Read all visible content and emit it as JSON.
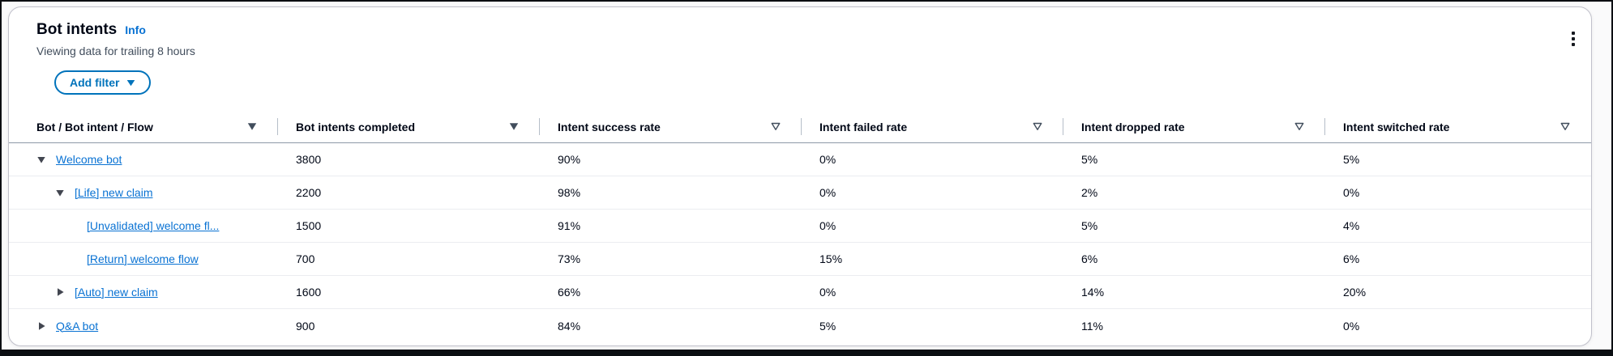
{
  "panel": {
    "title": "Bot intents",
    "info_link": "Info",
    "subtitle": "Viewing data for trailing 8 hours",
    "add_filter_label": "Add filter",
    "kebab_icon": "vertical-ellipsis-icon",
    "add_filter_caret_icon": "caret-down-filled-icon"
  },
  "colors": {
    "link": "#0972d3",
    "button": "#0073bb",
    "heading": "#000716",
    "secondary_text": "#414d5c",
    "icon": "#414d5c",
    "header_border": "#8d99a8",
    "row_border": "#ebedf0",
    "col_divider": "#b6bec9",
    "card_border": "#c1c1cb",
    "frame": "#0b0e12"
  },
  "table": {
    "columns": [
      {
        "label": "Bot / Bot intent / Flow",
        "filter_icon": "filled"
      },
      {
        "label": "Bot intents completed",
        "filter_icon": "filled"
      },
      {
        "label": "Intent success rate",
        "filter_icon": "outline"
      },
      {
        "label": "Intent failed rate",
        "filter_icon": "outline"
      },
      {
        "label": "Intent dropped rate",
        "filter_icon": "outline"
      },
      {
        "label": "Intent switched rate",
        "filter_icon": "outline"
      }
    ],
    "rows": [
      {
        "level": 1,
        "expander": "expanded",
        "label": "Welcome bot",
        "values": [
          "3800",
          "90%",
          "0%",
          "5%",
          "5%"
        ]
      },
      {
        "level": 2,
        "expander": "expanded",
        "label": "[Life] new claim",
        "values": [
          "2200",
          "98%",
          "0%",
          "2%",
          "0%"
        ]
      },
      {
        "level": 3,
        "expander": "none",
        "label": "[Unvalidated] welcome fl...",
        "values": [
          "1500",
          "91%",
          "0%",
          "5%",
          "4%"
        ]
      },
      {
        "level": 3,
        "expander": "none",
        "label": "[Return] welcome flow",
        "values": [
          "700",
          "73%",
          "15%",
          "6%",
          "6%"
        ]
      },
      {
        "level": 2,
        "expander": "collapsed",
        "label": "[Auto] new claim",
        "values": [
          "1600",
          "66%",
          "0%",
          "14%",
          "20%"
        ]
      },
      {
        "level": 1,
        "expander": "collapsed",
        "label": "Q&A bot",
        "values": [
          "900",
          "84%",
          "5%",
          "11%",
          "0%"
        ]
      }
    ]
  }
}
